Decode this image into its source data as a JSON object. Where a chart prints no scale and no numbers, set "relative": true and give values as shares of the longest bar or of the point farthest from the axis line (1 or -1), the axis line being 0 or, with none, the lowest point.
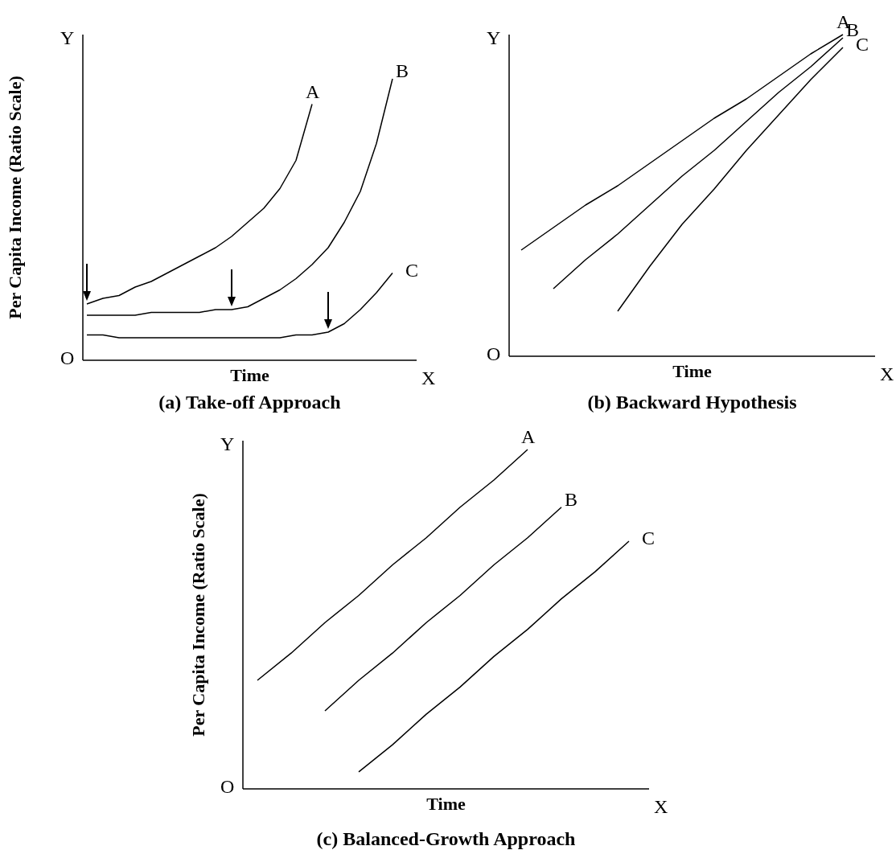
{
  "chart_data": [
    {
      "type": "line",
      "title": "(a) Take-off Approach",
      "xlabel": "Time",
      "ylabel": "Per Capita Income (Ratio Scale)",
      "relative": true,
      "annotations": [
        "O",
        "Y",
        "X"
      ],
      "categories": [
        null,
        null,
        null,
        null,
        null,
        null,
        null,
        null,
        null,
        null,
        null,
        null,
        null,
        null,
        null,
        null,
        null,
        null,
        null,
        null,
        null
      ],
      "series": [
        {
          "name": "A",
          "color": "#000000",
          "values": [
            0.2,
            0.22,
            0.23,
            0.26,
            0.28,
            0.31,
            0.34,
            0.37,
            0.4,
            0.44,
            0.49,
            0.54,
            0.61,
            0.71,
            0.91,
            null,
            null,
            null,
            null,
            null,
            null
          ]
        },
        {
          "name": "B",
          "color": "#000000",
          "values": [
            0.16,
            0.16,
            0.16,
            0.16,
            0.17,
            0.17,
            0.17,
            0.17,
            0.18,
            0.18,
            0.19,
            0.22,
            0.25,
            0.29,
            0.34,
            0.4,
            0.49,
            0.6,
            0.77,
            1,
            null
          ]
        },
        {
          "name": "C",
          "color": "#000000",
          "values": [
            0.09,
            0.09,
            0.08,
            0.08,
            0.08,
            0.08,
            0.08,
            0.08,
            0.08,
            0.08,
            0.08,
            0.08,
            0.08,
            0.09,
            0.09,
            0.1,
            0.13,
            0.18,
            0.24,
            0.31,
            null
          ]
        }
      ]
    },
    {
      "type": "line",
      "title": "(b) Backward Hypothesis",
      "xlabel": "Time",
      "relative": true,
      "annotations": [
        "O",
        "Y",
        "X"
      ],
      "categories": [
        null,
        null,
        null,
        null,
        null,
        null,
        null,
        null,
        null,
        null,
        null
      ],
      "series": [
        {
          "name": "A",
          "color": "#000000",
          "values": [
            0.33,
            0.4,
            0.47,
            0.53,
            0.6,
            0.67,
            0.74,
            0.8,
            0.87,
            0.94,
            1
          ]
        },
        {
          "name": "B",
          "color": "#000000",
          "values": [
            null,
            0.21,
            0.3,
            0.38,
            0.47,
            0.56,
            0.64,
            0.73,
            0.82,
            0.9,
            0.99
          ]
        },
        {
          "name": "C",
          "color": "#000000",
          "values": [
            null,
            null,
            null,
            0.14,
            0.28,
            0.41,
            0.52,
            0.64,
            0.75,
            0.86,
            0.96
          ]
        }
      ]
    },
    {
      "type": "line",
      "title": "(c) Balanced-Growth Approach",
      "xlabel": "Time",
      "ylabel": "Per Capita Income (Ratio Scale)",
      "relative": true,
      "annotations": [
        "O",
        "Y",
        "X"
      ],
      "categories": [
        null,
        null,
        null,
        null,
        null,
        null,
        null,
        null,
        null,
        null,
        null,
        null
      ],
      "series": [
        {
          "name": "A",
          "color": "#000000",
          "values": [
            0.32,
            0.4,
            0.49,
            0.57,
            0.66,
            0.74,
            0.83,
            0.91,
            1,
            null,
            null,
            null
          ]
        },
        {
          "name": "B",
          "color": "#000000",
          "values": [
            null,
            null,
            0.23,
            0.32,
            0.4,
            0.49,
            0.57,
            0.66,
            0.74,
            0.83,
            null,
            null
          ]
        },
        {
          "name": "C",
          "color": "#000000",
          "values": [
            null,
            null,
            null,
            0.05,
            0.13,
            0.22,
            0.3,
            0.39,
            0.47,
            0.56,
            0.64,
            0.73
          ]
        }
      ]
    }
  ]
}
